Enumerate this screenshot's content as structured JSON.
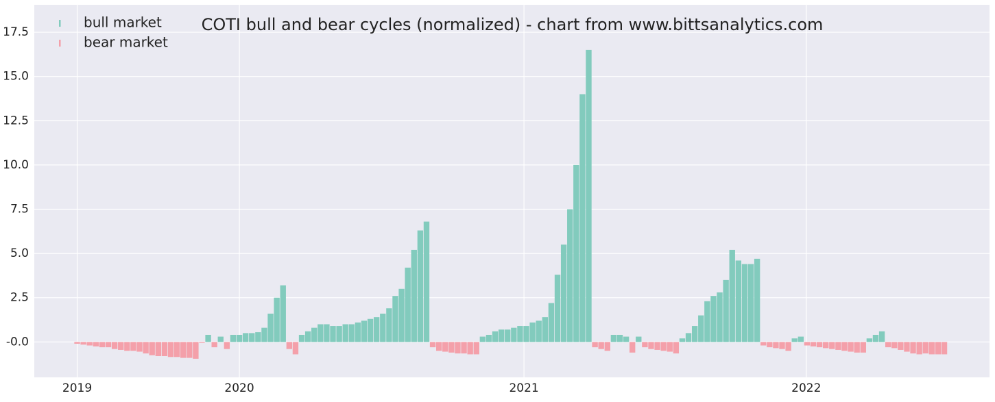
{
  "chart_data": {
    "type": "bar",
    "title": "COTI bull and bear cycles (normalized)  - chart from www.bittsanalytics.com",
    "x": [
      0,
      8,
      16,
      24,
      32,
      40,
      48,
      56,
      64,
      72,
      80,
      88,
      96,
      104,
      112,
      120,
      128,
      136,
      144,
      152,
      160,
      168,
      176,
      184,
      192,
      200,
      208,
      216,
      224,
      232,
      240,
      248,
      256,
      264,
      272,
      280,
      288,
      296,
      304,
      312,
      320,
      328,
      336,
      344,
      352,
      360,
      368,
      376,
      384,
      392,
      400,
      408,
      416,
      424,
      432,
      440,
      448,
      456,
      464,
      472,
      480,
      488,
      496,
      504,
      512,
      520,
      528,
      536,
      544,
      552,
      560,
      568,
      576,
      584,
      592,
      600,
      608,
      616,
      624,
      632,
      640,
      648,
      656,
      664,
      672,
      680,
      688,
      696,
      704,
      712,
      720,
      728,
      736,
      744,
      752,
      760,
      768,
      776,
      784,
      792,
      800,
      808,
      816,
      824,
      832,
      840,
      848,
      856,
      864,
      872,
      880,
      888,
      896,
      904,
      912,
      920,
      928,
      936,
      944,
      952,
      960,
      968,
      976,
      984,
      992,
      1000,
      1008,
      1016,
      1024,
      1032,
      1040,
      1048,
      1056,
      1064,
      1072,
      1080,
      1088,
      1096,
      1104,
      1112
    ],
    "series": [
      {
        "name": "bull market",
        "color": "#82cbbd",
        "values": [
          null,
          null,
          null,
          null,
          null,
          null,
          null,
          null,
          null,
          null,
          null,
          null,
          null,
          null,
          null,
          null,
          null,
          null,
          null,
          null,
          null,
          0.4,
          null,
          0.3,
          null,
          0.4,
          0.4,
          0.5,
          0.5,
          0.55,
          0.8,
          1.6,
          2.5,
          3.2,
          null,
          null,
          0.4,
          0.6,
          0.8,
          1.0,
          1.0,
          0.9,
          0.9,
          1.0,
          1.0,
          1.1,
          1.2,
          1.3,
          1.4,
          1.6,
          1.9,
          2.6,
          3.0,
          4.2,
          5.2,
          6.3,
          6.8,
          null,
          null,
          null,
          null,
          null,
          null,
          null,
          null,
          0.3,
          0.4,
          0.6,
          0.7,
          0.7,
          0.8,
          0.9,
          0.9,
          1.1,
          1.2,
          1.4,
          2.2,
          3.8,
          5.5,
          7.5,
          10.0,
          14.0,
          16.5,
          null,
          null,
          null,
          0.4,
          0.4,
          0.3,
          null,
          0.3,
          null,
          null,
          null,
          null,
          null,
          null,
          0.2,
          0.5,
          0.9,
          1.5,
          2.3,
          2.6,
          2.8,
          3.5,
          5.2,
          4.6,
          4.4,
          4.4,
          4.7,
          null,
          null,
          null,
          null,
          null,
          0.2,
          0.3,
          null,
          null,
          null,
          null,
          null,
          null,
          null,
          null,
          null,
          null,
          0.2,
          0.4,
          0.6,
          null,
          null,
          null,
          null,
          null,
          null,
          null,
          null,
          null,
          null
        ]
      },
      {
        "name": "bear market",
        "color": "#f4a0aa",
        "values": [
          -0.1,
          -0.15,
          -0.2,
          -0.25,
          -0.3,
          -0.3,
          -0.4,
          -0.45,
          -0.5,
          -0.5,
          -0.55,
          -0.65,
          -0.75,
          -0.8,
          -0.8,
          -0.85,
          -0.85,
          -0.9,
          -0.9,
          -0.95,
          -0.05,
          null,
          -0.3,
          null,
          -0.4,
          null,
          null,
          null,
          null,
          null,
          null,
          null,
          null,
          null,
          -0.4,
          -0.7,
          null,
          null,
          null,
          null,
          null,
          null,
          null,
          null,
          null,
          null,
          null,
          null,
          null,
          null,
          null,
          null,
          null,
          null,
          null,
          null,
          null,
          -0.3,
          -0.5,
          -0.55,
          -0.6,
          -0.65,
          -0.65,
          -0.7,
          -0.7,
          null,
          null,
          null,
          null,
          null,
          null,
          null,
          null,
          null,
          null,
          null,
          null,
          null,
          null,
          null,
          null,
          null,
          null,
          -0.3,
          -0.4,
          -0.5,
          null,
          null,
          null,
          -0.6,
          null,
          -0.3,
          -0.4,
          -0.45,
          -0.5,
          -0.55,
          -0.65,
          null,
          null,
          null,
          null,
          null,
          null,
          null,
          null,
          null,
          null,
          null,
          null,
          null,
          -0.2,
          -0.3,
          -0.35,
          -0.4,
          -0.5,
          null,
          null,
          -0.2,
          -0.25,
          -0.3,
          -0.35,
          -0.4,
          -0.45,
          -0.5,
          -0.55,
          -0.6,
          -0.6,
          null,
          null,
          null,
          -0.3,
          -0.35,
          -0.45,
          -0.55,
          -0.65,
          -0.7,
          -0.65,
          -0.7,
          -0.7,
          -0.7
        ]
      }
    ],
    "xlim": [
      -55,
      1170
    ],
    "xticks": [
      {
        "value": 0,
        "label": "2019"
      },
      {
        "value": 208,
        "label": "2020"
      },
      {
        "value": 573,
        "label": "2021"
      },
      {
        "value": 935,
        "label": "2022"
      }
    ],
    "ylim": [
      -2.0,
      19.05
    ],
    "yticks": [
      {
        "value": 0,
        "label": "-0.0"
      },
      2.5,
      {
        "value": 5,
        "label": "5.0"
      },
      7.5,
      {
        "value": 10,
        "label": "10.0"
      },
      12.5,
      {
        "value": 15,
        "label": "15.0"
      },
      17.5
    ],
    "grid": true,
    "legend": "upper left"
  }
}
